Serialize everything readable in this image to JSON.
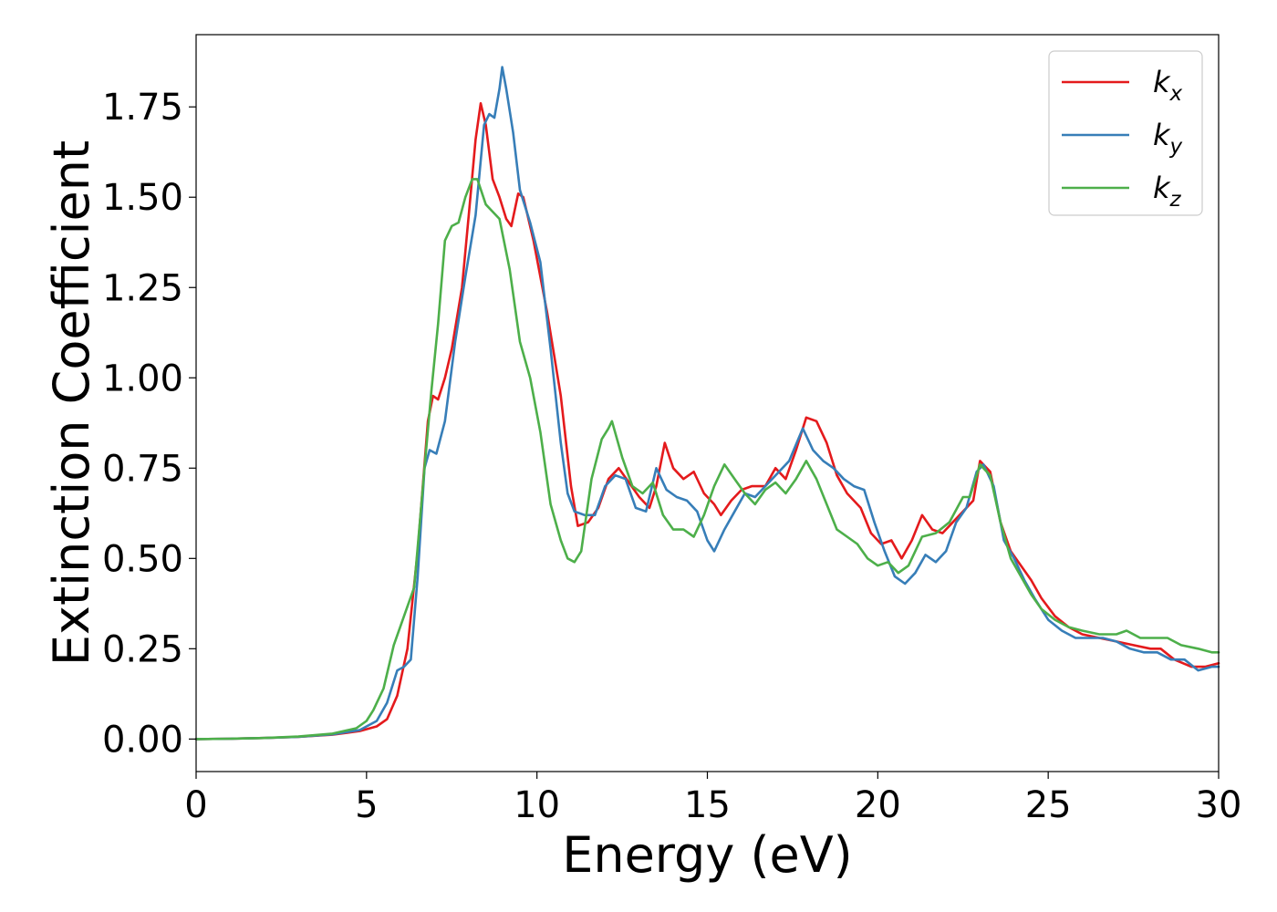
{
  "chart_data": {
    "type": "line",
    "xlabel": "Energy (eV)",
    "ylabel": "Extinction Coefficient",
    "xlim": [
      0,
      30
    ],
    "ylim": [
      -0.09,
      1.95
    ],
    "xticks": [
      0,
      5,
      10,
      15,
      20,
      25,
      30
    ],
    "yticks": [
      0.0,
      0.25,
      0.5,
      0.75,
      1.0,
      1.25,
      1.5,
      1.75
    ],
    "grid": false,
    "legend_position": "top-right",
    "series": [
      {
        "name": "k",
        "sub": "x",
        "color": "#e41a1c",
        "points": [
          [
            0,
            0.0
          ],
          [
            1,
            0.001
          ],
          [
            2,
            0.003
          ],
          [
            3,
            0.006
          ],
          [
            4,
            0.012
          ],
          [
            4.8,
            0.022
          ],
          [
            5.3,
            0.035
          ],
          [
            5.6,
            0.055
          ],
          [
            5.9,
            0.12
          ],
          [
            6.2,
            0.25
          ],
          [
            6.5,
            0.52
          ],
          [
            6.8,
            0.88
          ],
          [
            6.95,
            0.95
          ],
          [
            7.1,
            0.94
          ],
          [
            7.3,
            1.0
          ],
          [
            7.5,
            1.08
          ],
          [
            7.8,
            1.25
          ],
          [
            8.0,
            1.45
          ],
          [
            8.2,
            1.66
          ],
          [
            8.35,
            1.76
          ],
          [
            8.5,
            1.7
          ],
          [
            8.7,
            1.55
          ],
          [
            8.9,
            1.5
          ],
          [
            9.1,
            1.44
          ],
          [
            9.25,
            1.42
          ],
          [
            9.45,
            1.51
          ],
          [
            9.6,
            1.5
          ],
          [
            9.9,
            1.38
          ],
          [
            10.3,
            1.18
          ],
          [
            10.7,
            0.95
          ],
          [
            11.0,
            0.7
          ],
          [
            11.2,
            0.59
          ],
          [
            11.5,
            0.6
          ],
          [
            11.8,
            0.64
          ],
          [
            12.1,
            0.72
          ],
          [
            12.4,
            0.75
          ],
          [
            12.7,
            0.71
          ],
          [
            13.0,
            0.67
          ],
          [
            13.3,
            0.64
          ],
          [
            13.5,
            0.7
          ],
          [
            13.75,
            0.82
          ],
          [
            14.0,
            0.75
          ],
          [
            14.3,
            0.72
          ],
          [
            14.6,
            0.74
          ],
          [
            14.9,
            0.68
          ],
          [
            15.2,
            0.65
          ],
          [
            15.4,
            0.62
          ],
          [
            15.7,
            0.66
          ],
          [
            16.0,
            0.69
          ],
          [
            16.3,
            0.7
          ],
          [
            16.7,
            0.7
          ],
          [
            17.0,
            0.75
          ],
          [
            17.3,
            0.72
          ],
          [
            17.6,
            0.8
          ],
          [
            17.9,
            0.89
          ],
          [
            18.2,
            0.88
          ],
          [
            18.5,
            0.82
          ],
          [
            18.8,
            0.73
          ],
          [
            19.1,
            0.68
          ],
          [
            19.5,
            0.64
          ],
          [
            19.8,
            0.57
          ],
          [
            20.1,
            0.54
          ],
          [
            20.4,
            0.55
          ],
          [
            20.7,
            0.5
          ],
          [
            21.0,
            0.55
          ],
          [
            21.3,
            0.62
          ],
          [
            21.6,
            0.58
          ],
          [
            21.9,
            0.57
          ],
          [
            22.2,
            0.6
          ],
          [
            22.5,
            0.63
          ],
          [
            22.8,
            0.66
          ],
          [
            23.0,
            0.77
          ],
          [
            23.3,
            0.74
          ],
          [
            23.6,
            0.6
          ],
          [
            23.9,
            0.52
          ],
          [
            24.2,
            0.48
          ],
          [
            24.5,
            0.44
          ],
          [
            24.8,
            0.39
          ],
          [
            25.2,
            0.34
          ],
          [
            25.6,
            0.31
          ],
          [
            26.0,
            0.29
          ],
          [
            26.5,
            0.28
          ],
          [
            27.0,
            0.27
          ],
          [
            27.5,
            0.26
          ],
          [
            28.0,
            0.25
          ],
          [
            28.3,
            0.25
          ],
          [
            28.7,
            0.22
          ],
          [
            29.2,
            0.2
          ],
          [
            29.6,
            0.2
          ],
          [
            30,
            0.21
          ]
        ]
      },
      {
        "name": "k",
        "sub": "y",
        "color": "#377eb8",
        "points": [
          [
            0,
            0.0
          ],
          [
            1,
            0.001
          ],
          [
            2,
            0.003
          ],
          [
            3,
            0.006
          ],
          [
            4,
            0.013
          ],
          [
            4.8,
            0.025
          ],
          [
            5.3,
            0.05
          ],
          [
            5.6,
            0.1
          ],
          [
            5.9,
            0.19
          ],
          [
            6.1,
            0.2
          ],
          [
            6.3,
            0.22
          ],
          [
            6.5,
            0.45
          ],
          [
            6.7,
            0.75
          ],
          [
            6.85,
            0.8
          ],
          [
            7.05,
            0.79
          ],
          [
            7.3,
            0.88
          ],
          [
            7.6,
            1.1
          ],
          [
            7.9,
            1.28
          ],
          [
            8.2,
            1.45
          ],
          [
            8.45,
            1.7
          ],
          [
            8.6,
            1.73
          ],
          [
            8.75,
            1.72
          ],
          [
            8.9,
            1.8
          ],
          [
            8.98,
            1.86
          ],
          [
            9.1,
            1.8
          ],
          [
            9.3,
            1.68
          ],
          [
            9.5,
            1.52
          ],
          [
            9.8,
            1.43
          ],
          [
            10.1,
            1.32
          ],
          [
            10.4,
            1.08
          ],
          [
            10.7,
            0.82
          ],
          [
            10.9,
            0.68
          ],
          [
            11.1,
            0.63
          ],
          [
            11.4,
            0.62
          ],
          [
            11.7,
            0.62
          ],
          [
            12.0,
            0.7
          ],
          [
            12.3,
            0.73
          ],
          [
            12.6,
            0.72
          ],
          [
            12.9,
            0.64
          ],
          [
            13.2,
            0.63
          ],
          [
            13.5,
            0.75
          ],
          [
            13.8,
            0.69
          ],
          [
            14.1,
            0.67
          ],
          [
            14.4,
            0.66
          ],
          [
            14.7,
            0.63
          ],
          [
            15.0,
            0.55
          ],
          [
            15.2,
            0.52
          ],
          [
            15.5,
            0.58
          ],
          [
            15.8,
            0.63
          ],
          [
            16.1,
            0.68
          ],
          [
            16.4,
            0.67
          ],
          [
            16.8,
            0.71
          ],
          [
            17.1,
            0.74
          ],
          [
            17.4,
            0.77
          ],
          [
            17.8,
            0.86
          ],
          [
            18.1,
            0.8
          ],
          [
            18.4,
            0.77
          ],
          [
            18.7,
            0.75
          ],
          [
            19.0,
            0.72
          ],
          [
            19.3,
            0.7
          ],
          [
            19.6,
            0.69
          ],
          [
            19.9,
            0.6
          ],
          [
            20.2,
            0.52
          ],
          [
            20.5,
            0.45
          ],
          [
            20.8,
            0.43
          ],
          [
            21.1,
            0.46
          ],
          [
            21.4,
            0.51
          ],
          [
            21.7,
            0.49
          ],
          [
            22.0,
            0.52
          ],
          [
            22.3,
            0.6
          ],
          [
            22.6,
            0.64
          ],
          [
            22.9,
            0.74
          ],
          [
            23.1,
            0.76
          ],
          [
            23.4,
            0.7
          ],
          [
            23.7,
            0.55
          ],
          [
            24.0,
            0.5
          ],
          [
            24.3,
            0.44
          ],
          [
            24.6,
            0.39
          ],
          [
            25.0,
            0.33
          ],
          [
            25.4,
            0.3
          ],
          [
            25.8,
            0.28
          ],
          [
            26.2,
            0.28
          ],
          [
            26.6,
            0.28
          ],
          [
            27.0,
            0.27
          ],
          [
            27.4,
            0.25
          ],
          [
            27.8,
            0.24
          ],
          [
            28.2,
            0.24
          ],
          [
            28.6,
            0.22
          ],
          [
            29.0,
            0.22
          ],
          [
            29.4,
            0.19
          ],
          [
            29.8,
            0.2
          ],
          [
            30,
            0.2
          ]
        ]
      },
      {
        "name": "k",
        "sub": "z",
        "color": "#4daf4a",
        "points": [
          [
            0,
            0.0
          ],
          [
            1,
            0.001
          ],
          [
            2,
            0.003
          ],
          [
            3,
            0.007
          ],
          [
            4,
            0.015
          ],
          [
            4.7,
            0.03
          ],
          [
            5.0,
            0.05
          ],
          [
            5.2,
            0.08
          ],
          [
            5.5,
            0.14
          ],
          [
            5.8,
            0.26
          ],
          [
            6.1,
            0.34
          ],
          [
            6.4,
            0.42
          ],
          [
            6.7,
            0.75
          ],
          [
            6.9,
            0.96
          ],
          [
            7.1,
            1.15
          ],
          [
            7.3,
            1.38
          ],
          [
            7.5,
            1.42
          ],
          [
            7.7,
            1.43
          ],
          [
            7.9,
            1.5
          ],
          [
            8.1,
            1.55
          ],
          [
            8.25,
            1.55
          ],
          [
            8.5,
            1.48
          ],
          [
            8.7,
            1.46
          ],
          [
            8.9,
            1.44
          ],
          [
            9.2,
            1.3
          ],
          [
            9.5,
            1.1
          ],
          [
            9.8,
            1.0
          ],
          [
            10.1,
            0.85
          ],
          [
            10.4,
            0.65
          ],
          [
            10.7,
            0.55
          ],
          [
            10.9,
            0.5
          ],
          [
            11.1,
            0.49
          ],
          [
            11.3,
            0.52
          ],
          [
            11.6,
            0.72
          ],
          [
            11.9,
            0.83
          ],
          [
            12.1,
            0.86
          ],
          [
            12.2,
            0.88
          ],
          [
            12.5,
            0.78
          ],
          [
            12.8,
            0.7
          ],
          [
            13.1,
            0.68
          ],
          [
            13.4,
            0.71
          ],
          [
            13.7,
            0.62
          ],
          [
            14.0,
            0.58
          ],
          [
            14.3,
            0.58
          ],
          [
            14.6,
            0.56
          ],
          [
            14.9,
            0.62
          ],
          [
            15.2,
            0.7
          ],
          [
            15.5,
            0.76
          ],
          [
            15.8,
            0.72
          ],
          [
            16.1,
            0.68
          ],
          [
            16.4,
            0.65
          ],
          [
            16.7,
            0.69
          ],
          [
            17.0,
            0.71
          ],
          [
            17.3,
            0.68
          ],
          [
            17.6,
            0.72
          ],
          [
            17.9,
            0.77
          ],
          [
            18.2,
            0.72
          ],
          [
            18.5,
            0.65
          ],
          [
            18.8,
            0.58
          ],
          [
            19.1,
            0.56
          ],
          [
            19.4,
            0.54
          ],
          [
            19.7,
            0.5
          ],
          [
            20.0,
            0.48
          ],
          [
            20.3,
            0.49
          ],
          [
            20.6,
            0.46
          ],
          [
            20.9,
            0.48
          ],
          [
            21.3,
            0.56
          ],
          [
            21.7,
            0.57
          ],
          [
            22.1,
            0.6
          ],
          [
            22.5,
            0.67
          ],
          [
            22.7,
            0.67
          ],
          [
            23.0,
            0.76
          ],
          [
            23.3,
            0.73
          ],
          [
            23.6,
            0.6
          ],
          [
            23.9,
            0.5
          ],
          [
            24.2,
            0.45
          ],
          [
            24.5,
            0.4
          ],
          [
            24.8,
            0.36
          ],
          [
            25.2,
            0.33
          ],
          [
            25.6,
            0.31
          ],
          [
            26.0,
            0.3
          ],
          [
            26.5,
            0.29
          ],
          [
            27.0,
            0.29
          ],
          [
            27.3,
            0.3
          ],
          [
            27.7,
            0.28
          ],
          [
            28.1,
            0.28
          ],
          [
            28.5,
            0.28
          ],
          [
            28.9,
            0.26
          ],
          [
            29.4,
            0.25
          ],
          [
            29.8,
            0.24
          ],
          [
            30,
            0.24
          ]
        ]
      }
    ]
  }
}
